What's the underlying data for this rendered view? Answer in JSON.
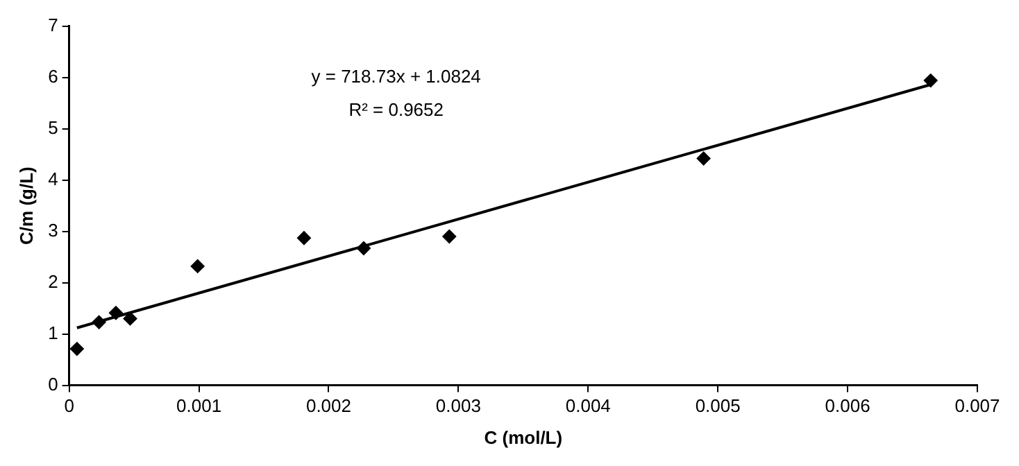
{
  "chart_data": {
    "type": "scatter",
    "xlabel": "C (mol/L)",
    "ylabel": "C/m (g/L)",
    "x": [
      6e-05,
      0.00023,
      0.00036,
      0.00047,
      0.00099,
      0.00181,
      0.00227,
      0.00293,
      0.00489,
      0.00664
    ],
    "series": [
      {
        "color": "#000000",
        "values": [
          0.71,
          1.23,
          1.41,
          1.3,
          2.32,
          2.87,
          2.67,
          2.9,
          4.42,
          5.94
        ]
      },
      {
        "type": "line",
        "color": "#000000",
        "marker": "none",
        "x": [
          6e-05,
          0.00664
        ],
        "values": [
          1.12,
          5.86
        ]
      }
    ],
    "marker": "diamond",
    "xlim": [
      0,
      0.007
    ],
    "xticks": [
      0,
      0.001,
      0.002,
      0.003,
      0.004,
      0.005,
      0.006,
      0.007
    ],
    "ylim": [
      0,
      7
    ],
    "yticks": [
      0,
      1,
      2,
      3,
      4,
      5,
      6,
      7
    ],
    "grid": false,
    "legend": false,
    "annotations": [
      "y = 718.73x + 1.0824",
      "R² = 0.9652"
    ]
  }
}
